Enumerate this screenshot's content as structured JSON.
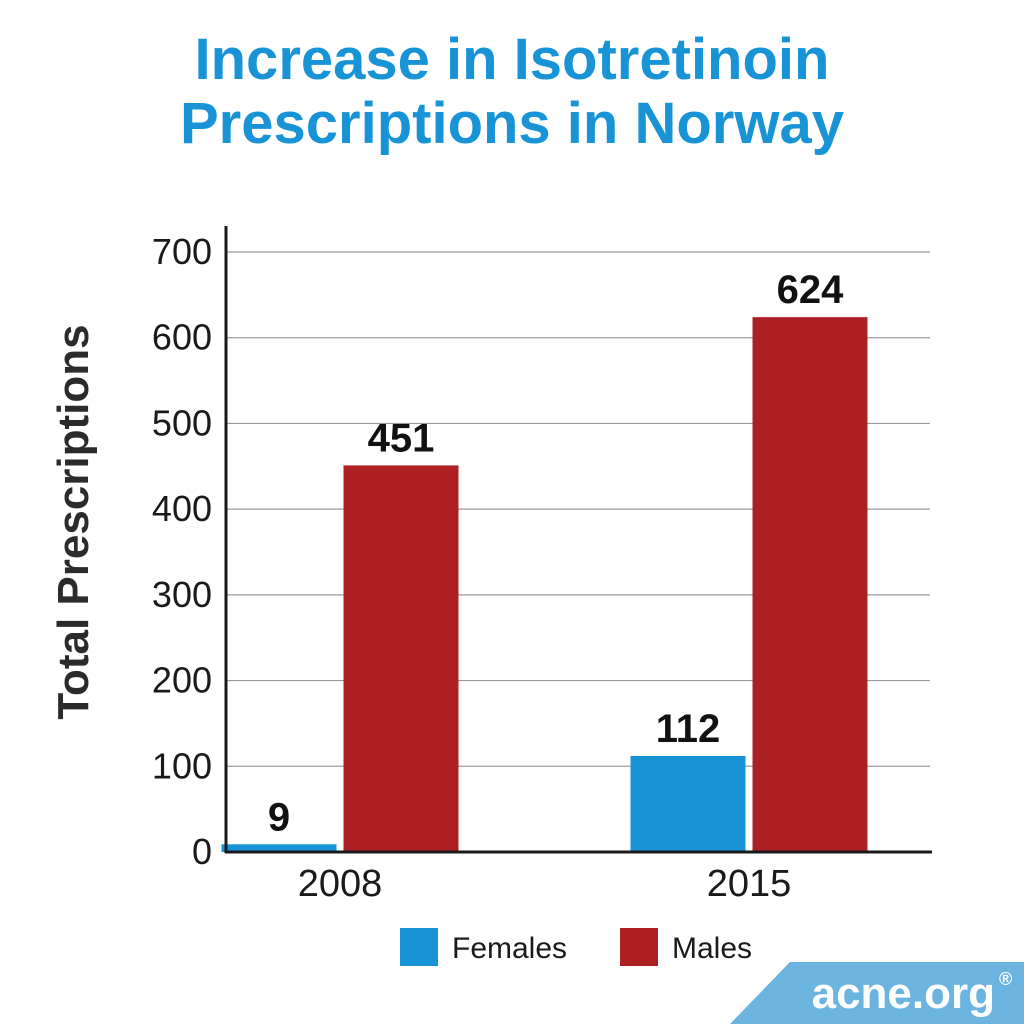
{
  "chart_data": {
    "type": "bar",
    "title_lines": [
      "Increase in Isotretinoin",
      "Prescriptions in Norway"
    ],
    "ylabel": "Total Prescriptions",
    "xlabel": "",
    "categories": [
      "2008",
      "2015"
    ],
    "series": [
      {
        "name": "Females",
        "values": [
          9,
          112
        ],
        "color": "#1893d6"
      },
      {
        "name": "Males",
        "values": [
          451,
          624
        ],
        "color": "#ae1f24"
      }
    ],
    "ylim": [
      0,
      700
    ],
    "yticks": [
      0,
      100,
      200,
      300,
      400,
      500,
      600,
      700
    ],
    "grid": true,
    "legend_position": "bottom"
  },
  "brand": {
    "text": "acne.org",
    "mark": "®",
    "color": "#6cb4e0"
  }
}
